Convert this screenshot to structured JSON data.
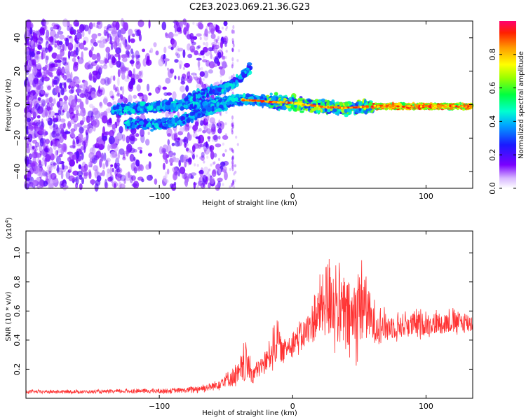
{
  "page": {
    "title": "C2E3.2023.069.21.36.G23"
  },
  "chart_data": [
    {
      "type": "heatmap",
      "xlabel": "Height of straight line (km)",
      "ylabel": "Frequency (Hz)",
      "xlim": [
        -200,
        135
      ],
      "ylim": [
        -50,
        50
      ],
      "xticks": [
        -100,
        0,
        100
      ],
      "yticks": [
        -40,
        -20,
        0,
        20,
        40
      ],
      "colorbar": {
        "label": "Normalized spectral amplitude",
        "range": [
          0,
          1
        ],
        "ticks": [
          "0.0",
          "0.2",
          "0.4",
          "0.6",
          "0.8"
        ],
        "tick_values": [
          0.0,
          0.2,
          0.4,
          0.6,
          0.8
        ]
      },
      "traces": [
        {
          "name": "main branch",
          "points": [
            [
              -135,
              -3
            ],
            [
              -115,
              -2
            ],
            [
              -100,
              -1
            ],
            [
              -80,
              0
            ],
            [
              -60,
              1
            ],
            [
              -40,
              3
            ],
            [
              -20,
              2
            ],
            [
              0,
              1
            ],
            [
              20,
              -1
            ],
            [
              40,
              -2
            ],
            [
              60,
              -1
            ],
            [
              80,
              -1
            ],
            [
              100,
              -1
            ],
            [
              120,
              -1
            ],
            [
              135,
              -1
            ]
          ]
        },
        {
          "name": "lower branch",
          "points": [
            [
              -125,
              -11
            ],
            [
              -105,
              -12
            ],
            [
              -90,
              -11
            ],
            [
              -75,
              -7
            ],
            [
              -60,
              -2
            ],
            [
              -50,
              0
            ]
          ]
        },
        {
          "name": "rising branch",
          "points": [
            [
              -80,
              3
            ],
            [
              -65,
              7
            ],
            [
              -50,
              10
            ],
            [
              -40,
              15
            ],
            [
              -32,
              22
            ]
          ]
        }
      ]
    },
    {
      "type": "line",
      "xlabel": "Height of straight line (km)",
      "ylabel": "SNR (10 * v/v)",
      "scale_label": "(x10",
      "scale_exp": "4",
      "scale_close": ")",
      "xlim": [
        -200,
        135
      ],
      "ylim": [
        0,
        1.15
      ],
      "xticks": [
        -100,
        0,
        100
      ],
      "yticks": [
        0.2,
        0.4,
        0.6,
        0.8,
        1.0
      ],
      "series": [
        {
          "name": "SNR",
          "color": "#ff3333",
          "envelope": [
            [
              -200,
              0.03,
              0.06
            ],
            [
              -180,
              0.03,
              0.06
            ],
            [
              -160,
              0.03,
              0.06
            ],
            [
              -140,
              0.03,
              0.06
            ],
            [
              -120,
              0.03,
              0.07
            ],
            [
              -100,
              0.03,
              0.07
            ],
            [
              -80,
              0.03,
              0.08
            ],
            [
              -60,
              0.04,
              0.12
            ],
            [
              -50,
              0.06,
              0.2
            ],
            [
              -40,
              0.04,
              0.28
            ],
            [
              -35,
              0.05,
              0.45
            ],
            [
              -30,
              0.08,
              0.25
            ],
            [
              -20,
              0.15,
              0.35
            ],
            [
              -12,
              0.18,
              0.65
            ],
            [
              -8,
              0.22,
              0.42
            ],
            [
              -5,
              0.24,
              0.45
            ],
            [
              0,
              0.28,
              0.5
            ],
            [
              10,
              0.3,
              0.6
            ],
            [
              20,
              0.34,
              0.85
            ],
            [
              28,
              0.28,
              1.15
            ],
            [
              35,
              0.26,
              0.95
            ],
            [
              45,
              0.16,
              0.9
            ],
            [
              52,
              0.3,
              1.1
            ],
            [
              60,
              0.32,
              0.7
            ],
            [
              70,
              0.36,
              0.62
            ],
            [
              80,
              0.38,
              0.62
            ],
            [
              100,
              0.4,
              0.62
            ],
            [
              120,
              0.42,
              0.63
            ],
            [
              135,
              0.42,
              0.62
            ]
          ]
        }
      ]
    }
  ]
}
